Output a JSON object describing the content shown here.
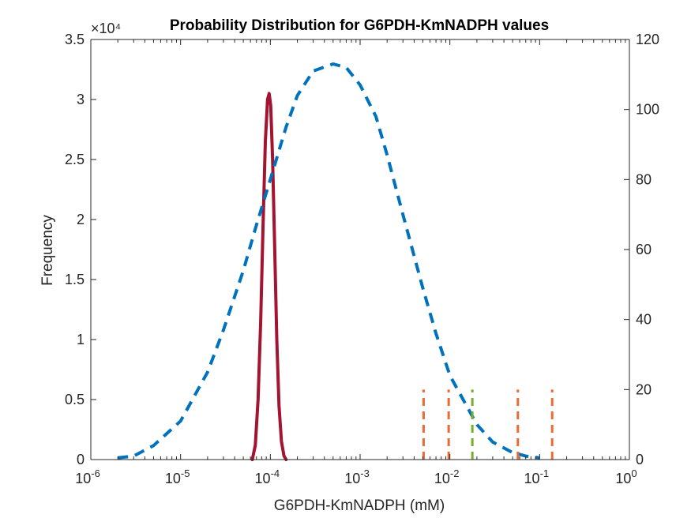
{
  "chart_data": {
    "type": "line",
    "title": "Probability Distribution for G6PDH-KmNADPH values",
    "xlabel": "G6PDH-KmNADPH (mM)",
    "ylabel": "Frequency",
    "x_scale": "log",
    "xlim": [
      1e-06,
      1
    ],
    "ylim": [
      0,
      35000
    ],
    "y2lim": [
      0,
      120
    ],
    "y_exponent_label": "×10⁴",
    "x_ticks": [
      {
        "value": 1e-06,
        "base": "10",
        "exp": "-6"
      },
      {
        "value": 1e-05,
        "base": "10",
        "exp": "-5"
      },
      {
        "value": 0.0001,
        "base": "10",
        "exp": "-4"
      },
      {
        "value": 0.001,
        "base": "10",
        "exp": "-3"
      },
      {
        "value": 0.01,
        "base": "10",
        "exp": "-2"
      },
      {
        "value": 0.1,
        "base": "10",
        "exp": "-1"
      },
      {
        "value": 1,
        "base": "10",
        "exp": "0"
      }
    ],
    "y_ticks": [
      {
        "value": 0,
        "label": "0"
      },
      {
        "value": 5000,
        "label": "0.5"
      },
      {
        "value": 10000,
        "label": "1"
      },
      {
        "value": 15000,
        "label": "1.5"
      },
      {
        "value": 20000,
        "label": "2"
      },
      {
        "value": 25000,
        "label": "2.5"
      },
      {
        "value": 30000,
        "label": "3"
      },
      {
        "value": 35000,
        "label": "3.5"
      }
    ],
    "y2_ticks": [
      {
        "value": 0,
        "label": "0"
      },
      {
        "value": 20,
        "label": "20"
      },
      {
        "value": 40,
        "label": "40"
      },
      {
        "value": 60,
        "label": "60"
      },
      {
        "value": 80,
        "label": "80"
      },
      {
        "value": 100,
        "label": "100"
      },
      {
        "value": 120,
        "label": "120"
      }
    ],
    "grid": false,
    "legend": "none",
    "series": [
      {
        "axis": "left",
        "style": "solid",
        "color": "#A2142F",
        "x": [
          6.3e-05,
          6.8e-05,
          7.3e-05,
          7.8e-05,
          8.3e-05,
          8.8e-05,
          9.3e-05,
          9.7e-05,
          0.000101,
          0.000106,
          0.000112,
          0.000118,
          0.000125,
          0.000133,
          0.000142,
          0.00015
        ],
        "y": [
          0,
          1200,
          5000,
          11500,
          19500,
          26500,
          30000,
          30500,
          29500,
          25000,
          17500,
          10000,
          4500,
          1500,
          300,
          0
        ]
      },
      {
        "axis": "right",
        "style": "dashed",
        "color": "#0072BD",
        "x": [
          2e-06,
          3e-06,
          5e-06,
          1e-05,
          2e-05,
          3e-05,
          5e-05,
          7e-05,
          0.0001,
          0.00015,
          0.0002,
          0.0003,
          0.0005,
          0.0007,
          0.001,
          0.0015,
          0.002,
          0.003,
          0.005,
          0.007,
          0.01,
          0.02,
          0.03,
          0.05,
          0.07,
          0.1
        ],
        "y": [
          0.5,
          1,
          4,
          11,
          25,
          37,
          54,
          67,
          80,
          95,
          104,
          111,
          113,
          112,
          107,
          98,
          87,
          70,
          49,
          36,
          24,
          10,
          5,
          2,
          1,
          0.5
        ]
      }
    ],
    "vlines": [
      {
        "x": 0.0051,
        "height": 20,
        "color": "#EF6A32"
      },
      {
        "x": 0.0097,
        "height": 20,
        "color": "#EF6A32"
      },
      {
        "x": 0.0178,
        "height": 20,
        "color": "#77AC30"
      },
      {
        "x": 0.0572,
        "height": 20,
        "color": "#EF6A32"
      },
      {
        "x": 0.1379,
        "height": 20,
        "color": "#EF6A32"
      }
    ]
  }
}
